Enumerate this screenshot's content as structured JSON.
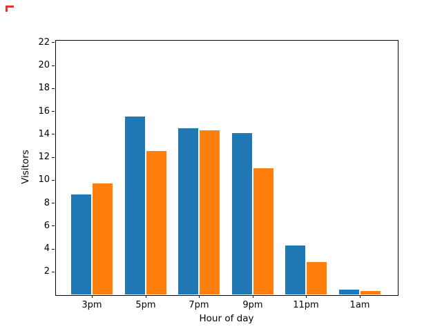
{
  "figure": {
    "background": "#ffffff",
    "corner_marker_color": "#e8322b"
  },
  "chart_data": {
    "type": "bar",
    "title": "",
    "xlabel": "Hour of day",
    "ylabel": "Visitors",
    "categories": [
      "3pm",
      "5pm",
      "7pm",
      "9pm",
      "11pm",
      "1am"
    ],
    "series": [
      {
        "name": "blue-series",
        "color": "#1f77b4",
        "values": [
          8.7,
          15.5,
          14.5,
          14.1,
          4.3,
          0.4
        ]
      },
      {
        "name": "orange-series",
        "color": "#ff7f0e",
        "values": [
          9.7,
          12.5,
          14.3,
          11.0,
          2.8,
          0.3
        ]
      }
    ],
    "yticks": [
      2,
      4,
      6,
      8,
      10,
      12,
      14,
      16,
      18,
      20,
      22
    ],
    "ylim": [
      0,
      22.2
    ],
    "grid": false,
    "legend": null,
    "axis_color": "#000000"
  }
}
